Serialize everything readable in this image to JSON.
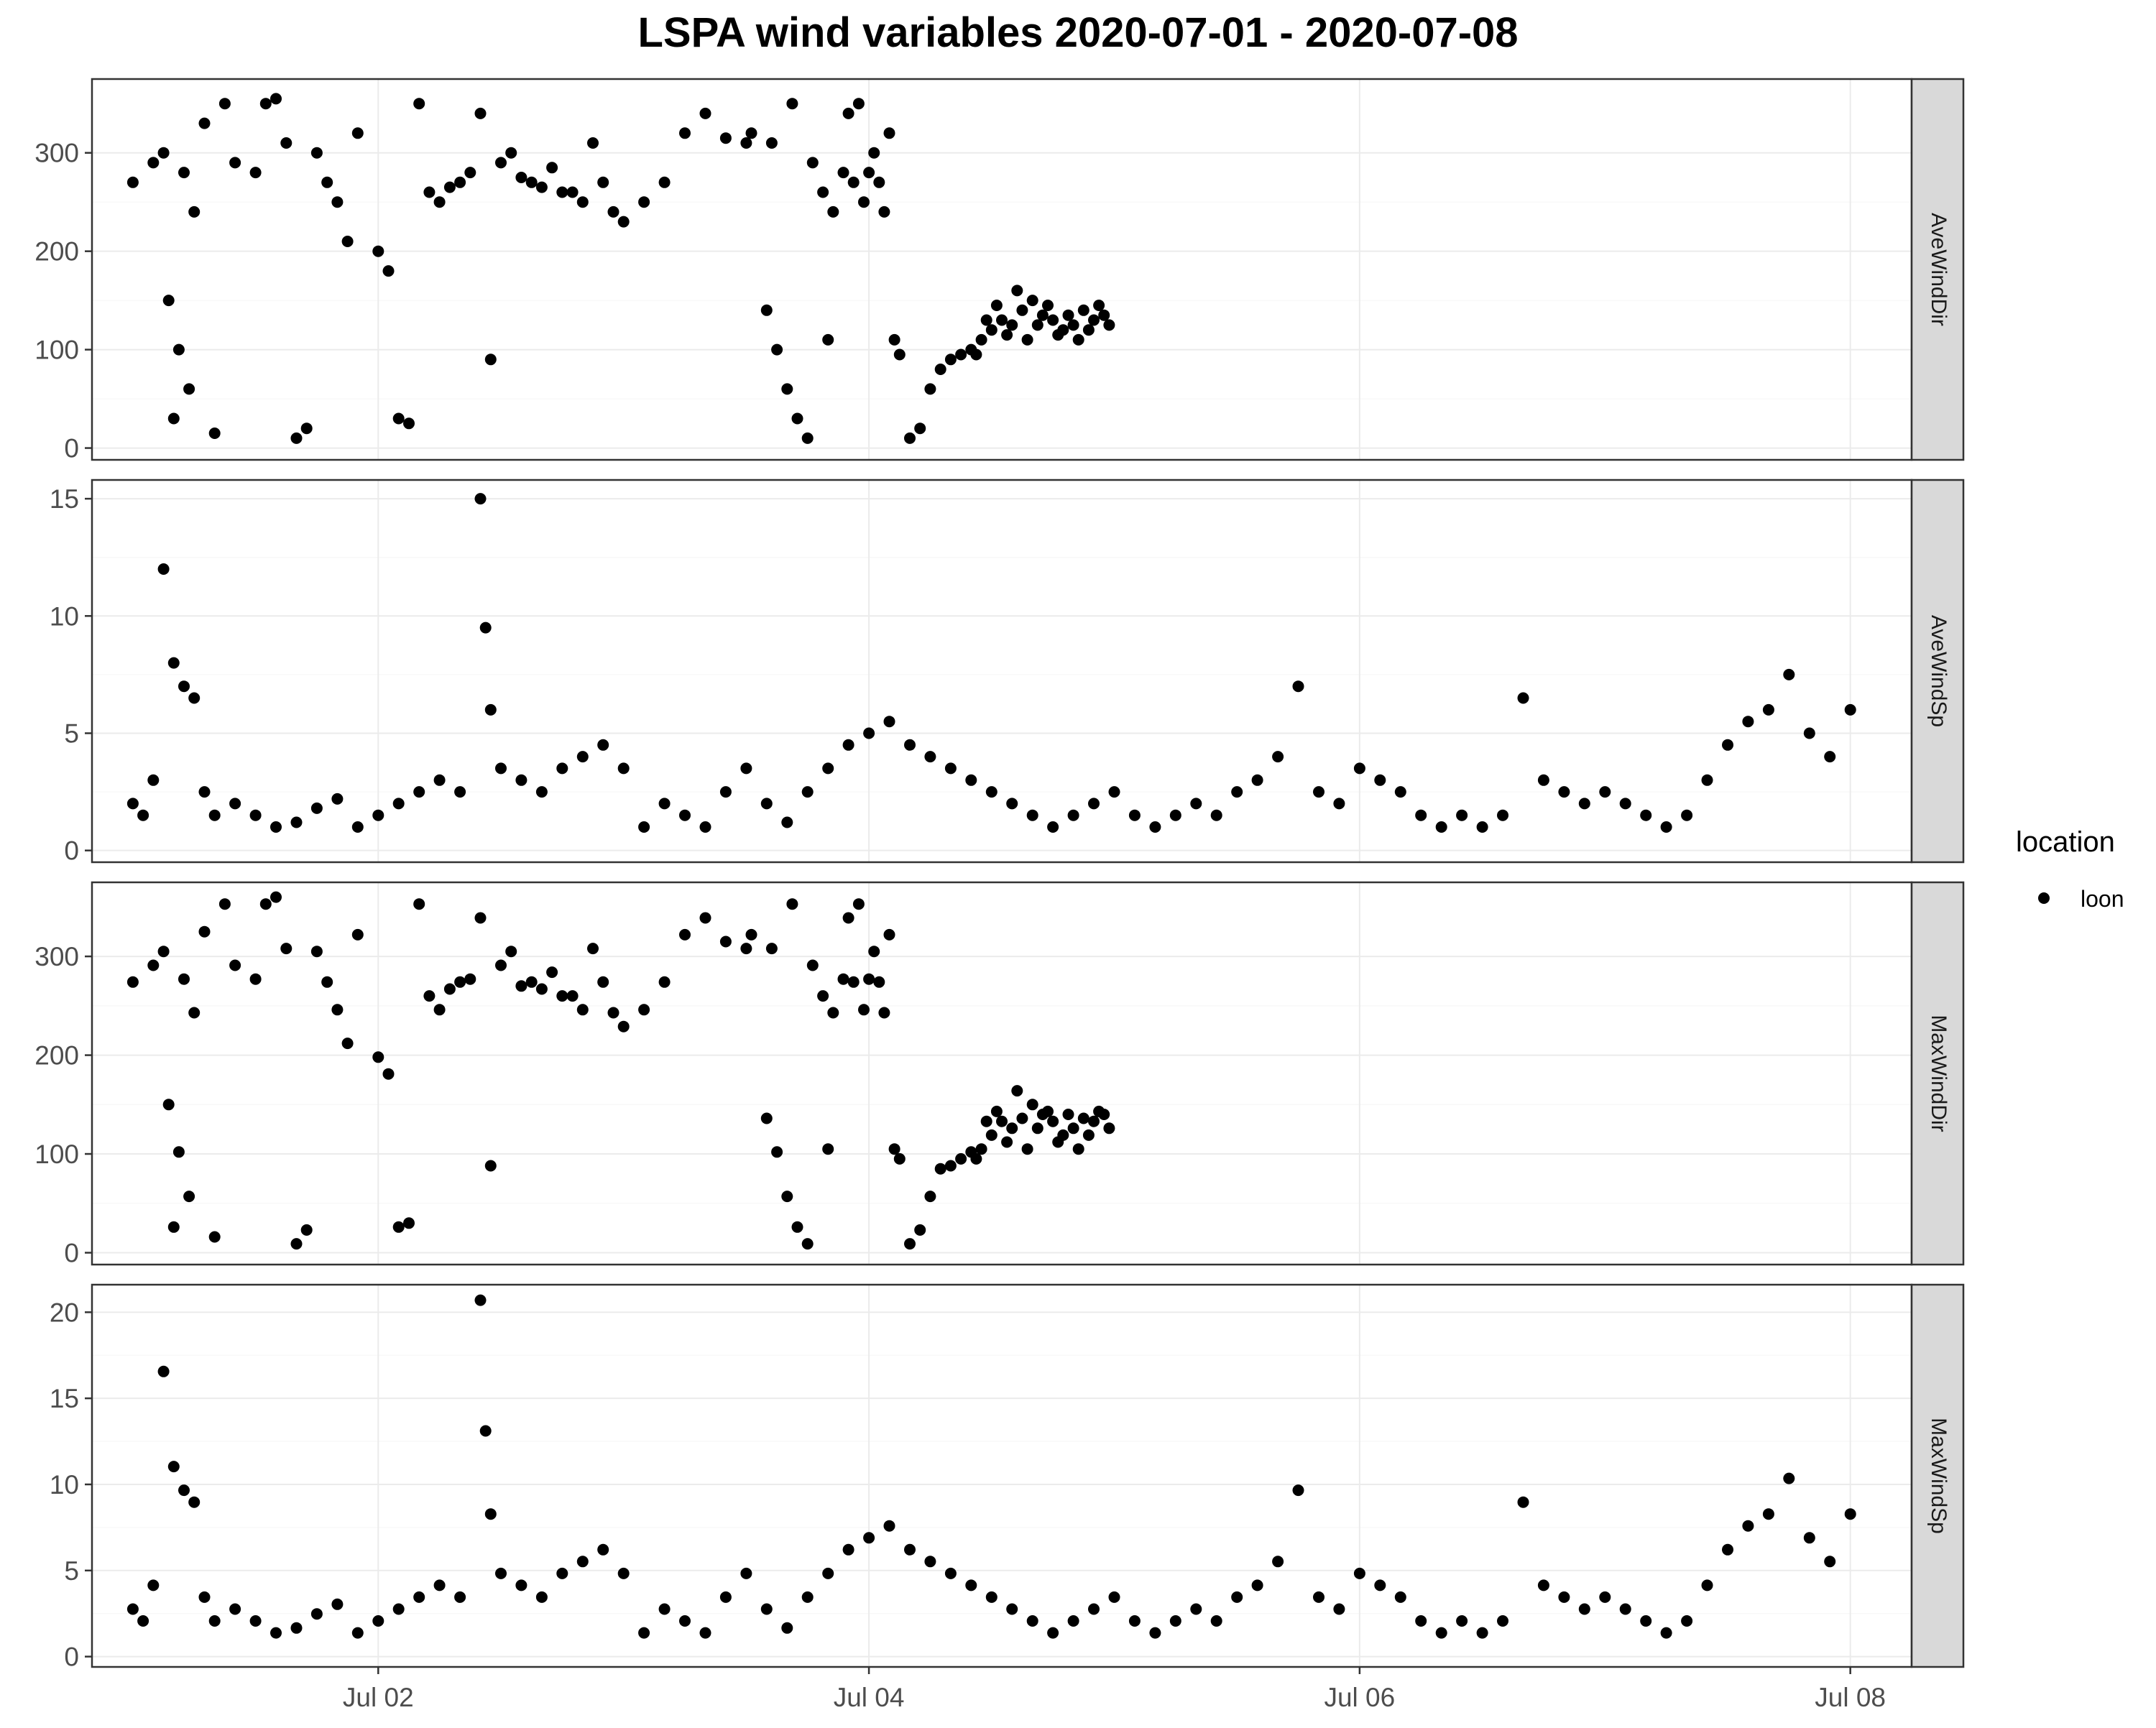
{
  "title": "LSPA wind variables 2020-07-01 - 2020-07-08",
  "legend": {
    "title": "location",
    "label": "loon",
    "placement": "right"
  },
  "chart_data": {
    "type": "scatter",
    "title": "LSPA wind variables 2020-07-01 - 2020-07-08",
    "xlabel": "",
    "ylabel": "",
    "grid": true,
    "x_axis": {
      "type": "date",
      "range": [
        "2020-06-30T20:00",
        "2020-07-08T06:00"
      ],
      "ticks": [
        {
          "value": "2020-07-02T00:00",
          "label": "Jul 02"
        },
        {
          "value": "2020-07-04T00:00",
          "label": "Jul 04"
        },
        {
          "value": "2020-07-06T00:00",
          "label": "Jul 06"
        },
        {
          "value": "2020-07-08T00:00",
          "label": "Jul 08"
        }
      ]
    },
    "series": [
      {
        "name": "loon",
        "color": "#000000"
      }
    ],
    "facets": [
      {
        "strip": "AveWindDir",
        "ylim": [
          -12,
          375
        ],
        "yticks": [
          0,
          100,
          200,
          300
        ],
        "points": [
          [
            "2020-07-01T00:00",
            270
          ],
          [
            "2020-07-01T02:00",
            290
          ],
          [
            "2020-07-01T03:00",
            300
          ],
          [
            "2020-07-01T05:00",
            280
          ],
          [
            "2020-07-01T06:00",
            240
          ],
          [
            "2020-07-01T03:30",
            150
          ],
          [
            "2020-07-01T04:30",
            100
          ],
          [
            "2020-07-01T05:30",
            60
          ],
          [
            "2020-07-01T04:00",
            30
          ],
          [
            "2020-07-01T08:00",
            15
          ],
          [
            "2020-07-01T07:00",
            330
          ],
          [
            "2020-07-01T09:00",
            350
          ],
          [
            "2020-07-01T10:00",
            290
          ],
          [
            "2020-07-01T12:00",
            280
          ],
          [
            "2020-07-01T13:00",
            350
          ],
          [
            "2020-07-01T14:00",
            355
          ],
          [
            "2020-07-01T15:00",
            310
          ],
          [
            "2020-07-01T16:00",
            10
          ],
          [
            "2020-07-01T17:00",
            20
          ],
          [
            "2020-07-01T18:00",
            300
          ],
          [
            "2020-07-01T19:00",
            270
          ],
          [
            "2020-07-01T20:00",
            250
          ],
          [
            "2020-07-01T21:00",
            210
          ],
          [
            "2020-07-01T22:00",
            320
          ],
          [
            "2020-07-02T00:00",
            200
          ],
          [
            "2020-07-02T01:00",
            180
          ],
          [
            "2020-07-02T02:00",
            30
          ],
          [
            "2020-07-02T03:00",
            25
          ],
          [
            "2020-07-02T04:00",
            350
          ],
          [
            "2020-07-02T05:00",
            260
          ],
          [
            "2020-07-02T06:00",
            250
          ],
          [
            "2020-07-02T07:00",
            265
          ],
          [
            "2020-07-02T08:00",
            270
          ],
          [
            "2020-07-02T09:00",
            280
          ],
          [
            "2020-07-02T10:00",
            340
          ],
          [
            "2020-07-02T11:00",
            90
          ],
          [
            "2020-07-02T12:00",
            290
          ],
          [
            "2020-07-02T13:00",
            300
          ],
          [
            "2020-07-02T14:00",
            275
          ],
          [
            "2020-07-02T15:00",
            270
          ],
          [
            "2020-07-02T16:00",
            265
          ],
          [
            "2020-07-02T17:00",
            285
          ],
          [
            "2020-07-02T18:00",
            260
          ],
          [
            "2020-07-02T19:00",
            260
          ],
          [
            "2020-07-02T20:00",
            250
          ],
          [
            "2020-07-02T21:00",
            310
          ],
          [
            "2020-07-02T22:00",
            270
          ],
          [
            "2020-07-02T23:00",
            240
          ],
          [
            "2020-07-03T00:00",
            230
          ],
          [
            "2020-07-03T02:00",
            250
          ],
          [
            "2020-07-03T04:00",
            270
          ],
          [
            "2020-07-03T06:00",
            320
          ],
          [
            "2020-07-03T08:00",
            340
          ],
          [
            "2020-07-03T10:00",
            315
          ],
          [
            "2020-07-03T12:00",
            310
          ],
          [
            "2020-07-03T14:00",
            140
          ],
          [
            "2020-07-03T15:00",
            100
          ],
          [
            "2020-07-03T16:00",
            60
          ],
          [
            "2020-07-03T17:00",
            30
          ],
          [
            "2020-07-03T18:00",
            10
          ],
          [
            "2020-07-03T20:00",
            110
          ],
          [
            "2020-07-03T22:00",
            340
          ],
          [
            "2020-07-03T23:00",
            350
          ],
          [
            "2020-07-03T12:30",
            320
          ],
          [
            "2020-07-03T14:30",
            310
          ],
          [
            "2020-07-03T16:30",
            350
          ],
          [
            "2020-07-03T18:30",
            290
          ],
          [
            "2020-07-03T20:30",
            240
          ],
          [
            "2020-07-03T21:30",
            280
          ],
          [
            "2020-07-03T19:30",
            260
          ],
          [
            "2020-07-03T22:30",
            270
          ],
          [
            "2020-07-03T23:30",
            250
          ],
          [
            "2020-07-04T00:00",
            280
          ],
          [
            "2020-07-04T00:30",
            300
          ],
          [
            "2020-07-04T01:00",
            270
          ],
          [
            "2020-07-04T01:30",
            240
          ],
          [
            "2020-07-04T02:00",
            320
          ],
          [
            "2020-07-04T02:30",
            110
          ],
          [
            "2020-07-04T03:00",
            95
          ],
          [
            "2020-07-04T04:00",
            10
          ],
          [
            "2020-07-04T05:00",
            20
          ],
          [
            "2020-07-04T06:00",
            60
          ],
          [
            "2020-07-04T07:00",
            80
          ],
          [
            "2020-07-04T08:00",
            90
          ],
          [
            "2020-07-04T09:00",
            95
          ],
          [
            "2020-07-04T10:00",
            100
          ],
          [
            "2020-07-04T11:00",
            110
          ],
          [
            "2020-07-04T12:00",
            120
          ],
          [
            "2020-07-04T13:00",
            130
          ],
          [
            "2020-07-04T14:00",
            125
          ],
          [
            "2020-07-04T15:00",
            140
          ],
          [
            "2020-07-04T16:00",
            150
          ],
          [
            "2020-07-04T17:00",
            135
          ],
          [
            "2020-07-04T18:00",
            130
          ],
          [
            "2020-07-04T19:00",
            120
          ],
          [
            "2020-07-04T20:00",
            125
          ],
          [
            "2020-07-04T21:00",
            140
          ],
          [
            "2020-07-04T22:00",
            130
          ],
          [
            "2020-07-04T23:00",
            135
          ],
          [
            "2020-07-04T12:30",
            145
          ],
          [
            "2020-07-04T13:30",
            115
          ],
          [
            "2020-07-04T14:30",
            160
          ],
          [
            "2020-07-04T15:30",
            110
          ],
          [
            "2020-07-04T16:30",
            125
          ],
          [
            "2020-07-04T17:30",
            145
          ],
          [
            "2020-07-04T18:30",
            115
          ],
          [
            "2020-07-04T19:30",
            135
          ],
          [
            "2020-07-04T20:30",
            110
          ],
          [
            "2020-07-04T21:30",
            120
          ],
          [
            "2020-07-04T22:30",
            145
          ],
          [
            "2020-07-04T23:30",
            125
          ],
          [
            "2020-07-04T10:30",
            95
          ],
          [
            "2020-07-04T11:30",
            130
          ]
        ]
      },
      {
        "strip": "AveWindSp",
        "ylim": [
          -0.5,
          15.8
        ],
        "yticks": [
          0,
          5,
          10,
          15
        ],
        "points": [
          [
            "2020-07-01T00:00",
            2.0
          ],
          [
            "2020-07-01T01:00",
            1.5
          ],
          [
            "2020-07-01T02:00",
            3.0
          ],
          [
            "2020-07-01T03:00",
            12.0
          ],
          [
            "2020-07-01T04:00",
            8.0
          ],
          [
            "2020-07-01T05:00",
            7.0
          ],
          [
            "2020-07-01T06:00",
            6.5
          ],
          [
            "2020-07-01T07:00",
            2.5
          ],
          [
            "2020-07-01T08:00",
            1.5
          ],
          [
            "2020-07-01T10:00",
            2.0
          ],
          [
            "2020-07-01T12:00",
            1.5
          ],
          [
            "2020-07-01T14:00",
            1.0
          ],
          [
            "2020-07-01T16:00",
            1.2
          ],
          [
            "2020-07-01T18:00",
            1.8
          ],
          [
            "2020-07-01T20:00",
            2.2
          ],
          [
            "2020-07-01T22:00",
            1.0
          ],
          [
            "2020-07-02T00:00",
            1.5
          ],
          [
            "2020-07-02T02:00",
            2.0
          ],
          [
            "2020-07-02T04:00",
            2.5
          ],
          [
            "2020-07-02T06:00",
            3.0
          ],
          [
            "2020-07-02T08:00",
            2.5
          ],
          [
            "2020-07-02T10:00",
            15.0
          ],
          [
            "2020-07-02T10:30",
            9.5
          ],
          [
            "2020-07-02T11:00",
            6.0
          ],
          [
            "2020-07-02T12:00",
            3.5
          ],
          [
            "2020-07-02T14:00",
            3.0
          ],
          [
            "2020-07-02T16:00",
            2.5
          ],
          [
            "2020-07-02T18:00",
            3.5
          ],
          [
            "2020-07-02T20:00",
            4.0
          ],
          [
            "2020-07-02T22:00",
            4.5
          ],
          [
            "2020-07-03T00:00",
            3.5
          ],
          [
            "2020-07-03T02:00",
            1.0
          ],
          [
            "2020-07-03T04:00",
            2.0
          ],
          [
            "2020-07-03T06:00",
            1.5
          ],
          [
            "2020-07-03T08:00",
            1.0
          ],
          [
            "2020-07-03T10:00",
            2.5
          ],
          [
            "2020-07-03T12:00",
            3.5
          ],
          [
            "2020-07-03T14:00",
            2.0
          ],
          [
            "2020-07-03T16:00",
            1.2
          ],
          [
            "2020-07-03T18:00",
            2.5
          ],
          [
            "2020-07-03T20:00",
            3.5
          ],
          [
            "2020-07-03T22:00",
            4.5
          ],
          [
            "2020-07-04T00:00",
            5.0
          ],
          [
            "2020-07-04T02:00",
            5.5
          ],
          [
            "2020-07-04T04:00",
            4.5
          ],
          [
            "2020-07-04T06:00",
            4.0
          ],
          [
            "2020-07-04T08:00",
            3.5
          ],
          [
            "2020-07-04T10:00",
            3.0
          ],
          [
            "2020-07-04T12:00",
            2.5
          ],
          [
            "2020-07-04T14:00",
            2.0
          ],
          [
            "2020-07-04T16:00",
            1.5
          ],
          [
            "2020-07-04T18:00",
            1.0
          ],
          [
            "2020-07-04T20:00",
            1.5
          ],
          [
            "2020-07-04T22:00",
            2.0
          ],
          [
            "2020-07-05T00:00",
            2.5
          ],
          [
            "2020-07-05T02:00",
            1.5
          ],
          [
            "2020-07-05T04:00",
            1.0
          ],
          [
            "2020-07-05T06:00",
            1.5
          ],
          [
            "2020-07-05T08:00",
            2.0
          ],
          [
            "2020-07-05T10:00",
            1.5
          ],
          [
            "2020-07-05T12:00",
            2.5
          ],
          [
            "2020-07-05T14:00",
            3.0
          ],
          [
            "2020-07-05T16:00",
            4.0
          ],
          [
            "2020-07-05T18:00",
            7.0
          ],
          [
            "2020-07-05T20:00",
            2.5
          ],
          [
            "2020-07-05T22:00",
            2.0
          ],
          [
            "2020-07-06T00:00",
            3.5
          ],
          [
            "2020-07-06T02:00",
            3.0
          ],
          [
            "2020-07-06T04:00",
            2.5
          ],
          [
            "2020-07-06T06:00",
            1.5
          ],
          [
            "2020-07-06T08:00",
            1.0
          ],
          [
            "2020-07-06T10:00",
            1.5
          ],
          [
            "2020-07-06T12:00",
            1.0
          ],
          [
            "2020-07-06T14:00",
            1.5
          ],
          [
            "2020-07-06T16:00",
            6.5
          ],
          [
            "2020-07-06T18:00",
            3.0
          ],
          [
            "2020-07-06T20:00",
            2.5
          ],
          [
            "2020-07-06T22:00",
            2.0
          ],
          [
            "2020-07-07T00:00",
            2.5
          ],
          [
            "2020-07-07T02:00",
            2.0
          ],
          [
            "2020-07-07T04:00",
            1.5
          ],
          [
            "2020-07-07T06:00",
            1.0
          ],
          [
            "2020-07-07T08:00",
            1.5
          ],
          [
            "2020-07-07T10:00",
            3.0
          ],
          [
            "2020-07-07T12:00",
            4.5
          ],
          [
            "2020-07-07T14:00",
            5.5
          ],
          [
            "2020-07-07T16:00",
            6.0
          ],
          [
            "2020-07-07T18:00",
            7.5
          ],
          [
            "2020-07-07T20:00",
            5.0
          ],
          [
            "2020-07-07T22:00",
            4.0
          ],
          [
            "2020-07-08T00:00",
            6.0
          ]
        ]
      }
    ]
  }
}
